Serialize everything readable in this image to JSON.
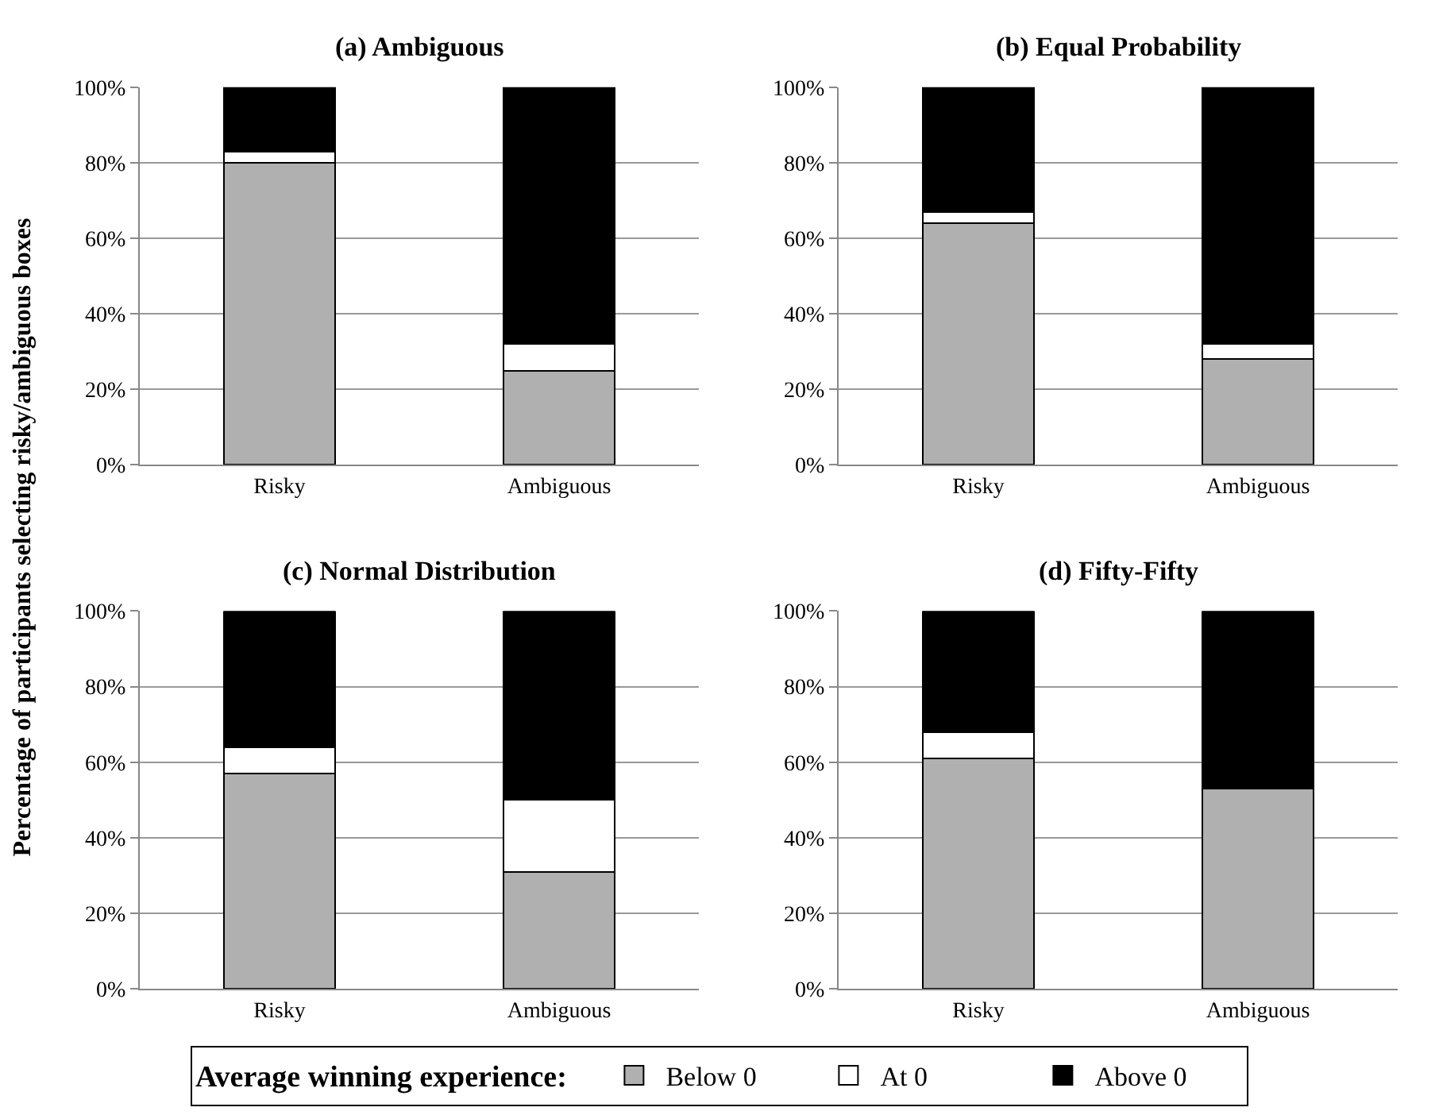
{
  "chart_data": [
    {
      "type": "bar",
      "title": "(a) Ambiguous",
      "ylabel": "Percentage of participants selecting risky/ambiguous boxes",
      "legend_title": "Average winning experience:",
      "categories": [
        "Risky",
        "Ambiguous"
      ],
      "stacked": true,
      "ylim": [
        0,
        100
      ],
      "yticks": [
        {
          "value": 0,
          "label": "0%"
        },
        {
          "value": 20,
          "label": "20%"
        },
        {
          "value": 40,
          "label": "40%"
        },
        {
          "value": 60,
          "label": "60%"
        },
        {
          "value": 80,
          "label": "80%"
        },
        {
          "value": 100,
          "label": "100%"
        }
      ],
      "grid": "y",
      "legend": "bottom",
      "series": [
        {
          "name": "Below 0",
          "color": "#b0b0b0",
          "values": [
            80,
            25
          ]
        },
        {
          "name": "At 0",
          "color": "#ffffff",
          "values": [
            3,
            7
          ]
        },
        {
          "name": "Above 0",
          "color": "#000000",
          "values": [
            17,
            68
          ]
        }
      ]
    },
    {
      "type": "bar",
      "title": "(b) Equal Probability",
      "categories": [
        "Risky",
        "Ambiguous"
      ],
      "stacked": true,
      "ylim": [
        0,
        100
      ],
      "yticks": [
        {
          "value": 0,
          "label": "0%"
        },
        {
          "value": 20,
          "label": "20%"
        },
        {
          "value": 40,
          "label": "40%"
        },
        {
          "value": 60,
          "label": "60%"
        },
        {
          "value": 80,
          "label": "80%"
        },
        {
          "value": 100,
          "label": "100%"
        }
      ],
      "grid": "y",
      "legend": "bottom",
      "series": [
        {
          "name": "Below 0",
          "color": "#b0b0b0",
          "values": [
            64,
            28
          ]
        },
        {
          "name": "At 0",
          "color": "#ffffff",
          "values": [
            3,
            4
          ]
        },
        {
          "name": "Above 0",
          "color": "#000000",
          "values": [
            33,
            68
          ]
        }
      ]
    },
    {
      "type": "bar",
      "title": "(c) Normal Distribution",
      "categories": [
        "Risky",
        "Ambiguous"
      ],
      "stacked": true,
      "ylim": [
        0,
        100
      ],
      "yticks": [
        {
          "value": 0,
          "label": "0%"
        },
        {
          "value": 20,
          "label": "20%"
        },
        {
          "value": 40,
          "label": "40%"
        },
        {
          "value": 60,
          "label": "60%"
        },
        {
          "value": 80,
          "label": "80%"
        },
        {
          "value": 100,
          "label": "100%"
        }
      ],
      "grid": "y",
      "legend": "bottom",
      "series": [
        {
          "name": "Below 0",
          "color": "#b0b0b0",
          "values": [
            57,
            31
          ]
        },
        {
          "name": "At 0",
          "color": "#ffffff",
          "values": [
            7,
            19
          ]
        },
        {
          "name": "Above 0",
          "color": "#000000",
          "values": [
            36,
            50
          ]
        }
      ]
    },
    {
      "type": "bar",
      "title": "(d) Fifty-Fifty",
      "categories": [
        "Risky",
        "Ambiguous"
      ],
      "stacked": true,
      "ylim": [
        0,
        100
      ],
      "yticks": [
        {
          "value": 0,
          "label": "0%"
        },
        {
          "value": 20,
          "label": "20%"
        },
        {
          "value": 40,
          "label": "40%"
        },
        {
          "value": 60,
          "label": "60%"
        },
        {
          "value": 80,
          "label": "80%"
        },
        {
          "value": 100,
          "label": "100%"
        }
      ],
      "grid": "y",
      "legend": "bottom",
      "series": [
        {
          "name": "Below 0",
          "color": "#b0b0b0",
          "values": [
            61,
            53
          ]
        },
        {
          "name": "At 0",
          "color": "#ffffff",
          "values": [
            7,
            0
          ]
        },
        {
          "name": "Above 0",
          "color": "#000000",
          "values": [
            32,
            47
          ]
        }
      ]
    }
  ]
}
